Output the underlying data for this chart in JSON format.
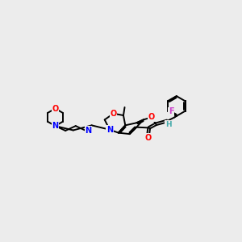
{
  "background_color": "#ececec",
  "bond_color": "#000000",
  "atom_colors": {
    "O": "#ff0000",
    "N": "#0000ff",
    "F": "#cc44cc",
    "C": "#000000",
    "H": "#44aaaa"
  },
  "figsize": [
    3.0,
    3.0
  ],
  "dpi": 100
}
